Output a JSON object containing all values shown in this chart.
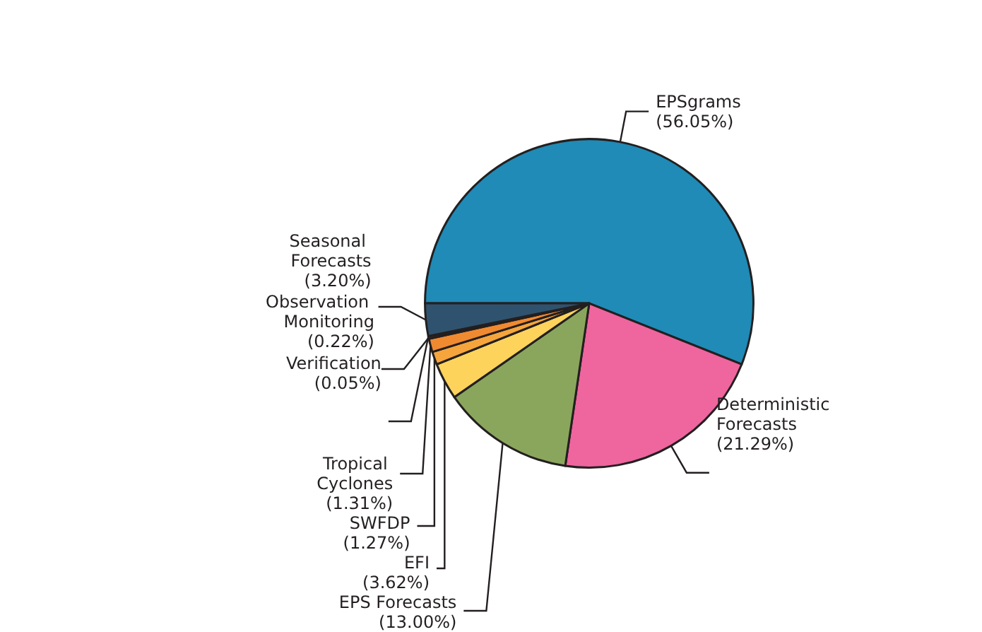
{
  "chart_data": {
    "type": "pie",
    "categories": [
      "EPSgrams",
      "Deterministic Forecasts",
      "EPS Forecasts",
      "EFI",
      "SWFDP",
      "Tropical Cyclones",
      "Observation Monitoring",
      "Verification",
      "Seasonal Forecasts"
    ],
    "values": [
      56.05,
      21.29,
      13.0,
      3.62,
      1.27,
      1.31,
      0.22,
      0.05,
      3.2
    ],
    "value_labels": [
      "(56.05%)",
      "(21.29%)",
      "(13.00%)",
      "(3.62%)",
      "(1.27%)",
      "(1.31%)",
      "(0.22%)",
      "(0.05%)",
      "(3.20%)"
    ],
    "colors": [
      "#1f8bb6",
      "#ef659e",
      "#8aa65c",
      "#fdd35c",
      "#f6a53c",
      "#f08a30",
      "#c8602a",
      "#9a3b1f",
      "#2f536e"
    ],
    "legend": false
  }
}
